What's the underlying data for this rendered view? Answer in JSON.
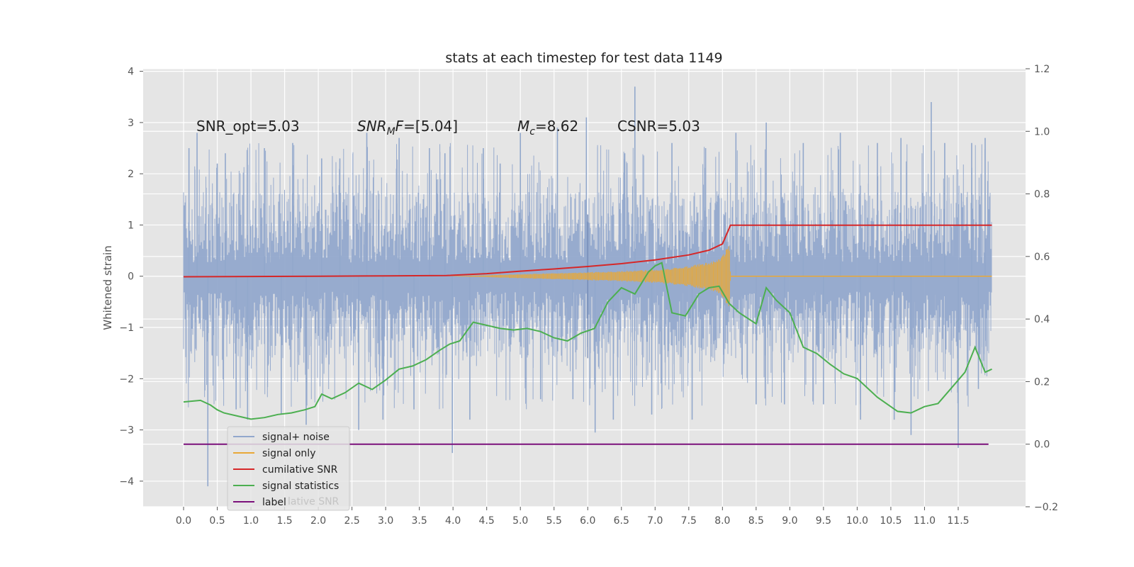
{
  "chart_data": {
    "type": "line",
    "title": "stats at each timestep for test data 1149",
    "xlabel": "",
    "ylabel": "Whitened strain",
    "y2label": "",
    "xlim": [
      -0.6,
      12.5
    ],
    "ylim": [
      -4.5,
      4.05
    ],
    "y2lim": [
      -0.2,
      1.2
    ],
    "x_ticks": [
      "0.0",
      "0.5",
      "1.0",
      "1.5",
      "2.0",
      "2.5",
      "3.0",
      "3.5",
      "4.0",
      "4.5",
      "5.0",
      "5.5",
      "6.0",
      "6.5",
      "7.0",
      "7.5",
      "8.0",
      "8.5",
      "9.0",
      "9.5",
      "10.0",
      "10.5",
      "11.0",
      "11.5"
    ],
    "y_ticks": [
      "4",
      "3",
      "2",
      "1",
      "0",
      "−1",
      "−2",
      "−3",
      "−4"
    ],
    "y2_ticks": [
      "1.2",
      "1.0",
      "0.8",
      "0.6",
      "0.4",
      "0.2",
      "0.0",
      "−0.2"
    ],
    "grid": true,
    "legend_position": "lower-left",
    "annotations": {
      "snr_opt": "SNR_opt=5.03",
      "snr_mf_prefix": "SNR",
      "snr_mf_sub": "M",
      "snr_mf_f": "F",
      "snr_mf_value": "=[5.04]",
      "mc_symbol": "M",
      "mc_sub": "c",
      "mc_value": "=8.62",
      "csnr": "CSNR=5.03"
    },
    "series": [
      {
        "name": "signal+ noise",
        "color": "#92a8cc",
        "axis": "left",
        "x_range": [
          0.0,
          12.0
        ],
        "envelope_upper": 1.65,
        "envelope_lower": -1.6,
        "spikes": [
          [
            0.08,
            2.5
          ],
          [
            0.2,
            2.8
          ],
          [
            0.36,
            -4.1
          ],
          [
            0.5,
            2.2
          ],
          [
            0.62,
            2.4
          ],
          [
            0.78,
            -2.6
          ],
          [
            0.95,
            -2.8
          ],
          [
            1.2,
            2.5
          ],
          [
            1.45,
            -2.7
          ],
          [
            1.62,
            2.6
          ],
          [
            1.82,
            -2.9
          ],
          [
            2.05,
            2.3
          ],
          [
            2.32,
            2.3
          ],
          [
            2.6,
            -3.0
          ],
          [
            2.72,
            2.8
          ],
          [
            2.96,
            -2.8
          ],
          [
            3.2,
            2.7
          ],
          [
            3.42,
            -2.6
          ],
          [
            3.65,
            2.5
          ],
          [
            3.88,
            2.4
          ],
          [
            3.99,
            -3.45
          ],
          [
            4.25,
            -2.8
          ],
          [
            4.45,
            2.5
          ],
          [
            4.7,
            2.2
          ],
          [
            5.0,
            2.8
          ],
          [
            5.3,
            -2.4
          ],
          [
            5.55,
            2.9
          ],
          [
            5.78,
            -2.4
          ],
          [
            5.98,
            3.1
          ],
          [
            6.11,
            -3.05
          ],
          [
            6.38,
            -2.8
          ],
          [
            6.55,
            2.4
          ],
          [
            6.7,
            3.7
          ],
          [
            6.95,
            -2.7
          ],
          [
            7.25,
            2.6
          ],
          [
            7.55,
            -2.8
          ],
          [
            7.75,
            2.5
          ],
          [
            8.2,
            2.8
          ],
          [
            8.5,
            -2.5
          ],
          [
            8.65,
            3.0
          ],
          [
            8.92,
            -2.5
          ],
          [
            9.2,
            2.6
          ],
          [
            9.5,
            -2.5
          ],
          [
            9.75,
            2.8
          ],
          [
            10.05,
            -2.8
          ],
          [
            10.3,
            2.6
          ],
          [
            10.55,
            -2.8
          ],
          [
            10.65,
            2.7
          ],
          [
            10.8,
            -3.1
          ],
          [
            11.1,
            3.4
          ],
          [
            11.3,
            2.6
          ],
          [
            11.5,
            -3.35
          ],
          [
            11.7,
            2.6
          ],
          [
            11.8,
            -2.2
          ],
          [
            11.9,
            2.7
          ]
        ]
      },
      {
        "name": "signal only",
        "color": "#e8a838",
        "axis": "left",
        "x": [
          3.9,
          4.5,
          5.0,
          5.5,
          6.0,
          6.5,
          7.0,
          7.5,
          7.8,
          8.0,
          8.1,
          8.12
        ],
        "amplitude": [
          0.0,
          0.02,
          0.04,
          0.06,
          0.08,
          0.1,
          0.13,
          0.2,
          0.28,
          0.4,
          0.7,
          0.0
        ]
      },
      {
        "name": "cumilative SNR",
        "color": "#d62728",
        "axis": "right",
        "x": [
          0.0,
          1.0,
          2.0,
          3.0,
          3.9,
          4.5,
          5.0,
          5.5,
          6.0,
          6.5,
          7.0,
          7.5,
          7.8,
          8.0,
          8.12,
          12.0
        ],
        "y": [
          0.535,
          0.536,
          0.537,
          0.538,
          0.539,
          0.545,
          0.553,
          0.56,
          0.568,
          0.577,
          0.589,
          0.605,
          0.62,
          0.64,
          0.7,
          0.7
        ]
      },
      {
        "name": "signal statistics",
        "color": "#4caf50",
        "axis": "right",
        "x": [
          0.0,
          0.25,
          0.4,
          0.5,
          0.6,
          0.8,
          1.0,
          1.2,
          1.4,
          1.6,
          1.8,
          1.95,
          2.05,
          2.2,
          2.4,
          2.6,
          2.8,
          3.0,
          3.2,
          3.4,
          3.6,
          3.8,
          3.95,
          4.1,
          4.3,
          4.5,
          4.7,
          4.9,
          5.1,
          5.3,
          5.5,
          5.7,
          5.9,
          6.1,
          6.3,
          6.5,
          6.7,
          6.9,
          7.0,
          7.1,
          7.25,
          7.45,
          7.65,
          7.8,
          7.95,
          8.1,
          8.25,
          8.5,
          8.65,
          8.8,
          9.0,
          9.2,
          9.4,
          9.6,
          9.8,
          10.0,
          10.3,
          10.6,
          10.8,
          11.0,
          11.2,
          11.4,
          11.6,
          11.75,
          11.9,
          12.0
        ],
        "y": [
          0.135,
          0.14,
          0.125,
          0.11,
          0.1,
          0.09,
          0.08,
          0.085,
          0.095,
          0.1,
          0.11,
          0.12,
          0.16,
          0.145,
          0.165,
          0.195,
          0.175,
          0.205,
          0.24,
          0.25,
          0.27,
          0.3,
          0.32,
          0.33,
          0.39,
          0.38,
          0.37,
          0.365,
          0.37,
          0.36,
          0.34,
          0.33,
          0.355,
          0.37,
          0.455,
          0.5,
          0.48,
          0.55,
          0.57,
          0.58,
          0.42,
          0.41,
          0.48,
          0.5,
          0.505,
          0.45,
          0.42,
          0.385,
          0.5,
          0.46,
          0.42,
          0.31,
          0.29,
          0.255,
          0.225,
          0.21,
          0.15,
          0.105,
          0.1,
          0.12,
          0.13,
          0.18,
          0.23,
          0.31,
          0.23,
          0.24
        ]
      },
      {
        "name": "label",
        "color": "#7b107b",
        "axis": "right",
        "x": [
          0.0,
          11.95
        ],
        "y": [
          0.0,
          0.0
        ]
      }
    ],
    "legend_ghost_text": "lative SNR"
  }
}
